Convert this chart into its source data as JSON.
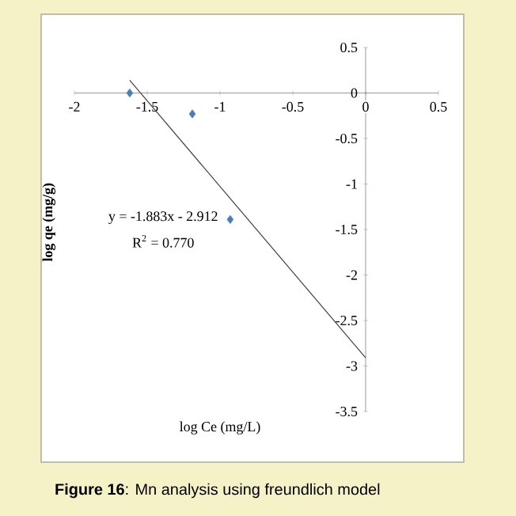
{
  "chart_data": {
    "type": "scatter",
    "xlabel": "log Ce (mg/L)",
    "ylabel": "log qe (mg/g)",
    "annotations": [
      "y = -1.883x - 2.912",
      "R$^{2}$ = 0.770",
      "**Figure 16**: Mn analysis using freundlich model"
    ],
    "xlim": [
      -2,
      0.5
    ],
    "ylim": [
      -3.5,
      0.5
    ],
    "xticks": [
      -2,
      -1.5,
      -1,
      -0.5,
      0,
      0.5
    ],
    "yticks": [
      -3.5,
      -3,
      -2.5,
      -2,
      -1.5,
      -1,
      -0.5,
      0,
      0.5
    ],
    "series": [
      {
        "color": "#4a7ebb",
        "marker": "diamond",
        "x": [
          -1.62,
          -1.19,
          -0.93
        ],
        "values": [
          0,
          -0.23,
          -1.39
        ]
      },
      {
        "type": "line",
        "color": "#404040",
        "marker": "none",
        "x": [
          -1.62,
          0
        ],
        "values": [
          0.14,
          -2.91
        ]
      }
    ]
  }
}
